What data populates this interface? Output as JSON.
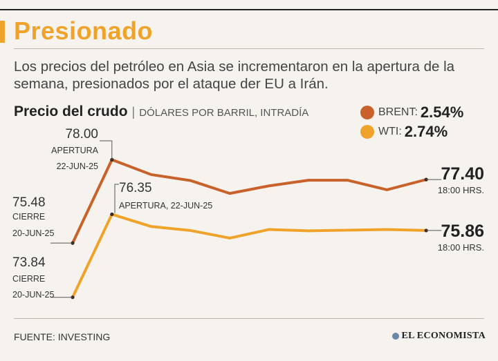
{
  "header": {
    "title": "Presionado",
    "subtitle": "Los precios del petróleo en Asia se incrementaron en la apertura de la semana, presionados por el ataque der EU a Irán."
  },
  "chart_title": {
    "main": "Precio del crudo",
    "separator": "|",
    "units": "DÓLARES POR BARRIL, INTRADÍA"
  },
  "legend": [
    {
      "name": "BRENT:",
      "change": "2.54%",
      "color": "#c9622a"
    },
    {
      "name": "WTI:",
      "change": "2.74%",
      "color": "#f0a32a"
    }
  ],
  "chart_data": {
    "type": "line",
    "ylim": [
      73.5,
      78.3
    ],
    "grid": false,
    "legend_position": "top-right",
    "series": [
      {
        "name": "BRENT",
        "color": "#c9622a",
        "values": [
          75.48,
          78.0,
          77.55,
          77.37,
          76.98,
          77.21,
          77.38,
          77.38,
          77.09,
          77.4
        ],
        "annotations": {
          "start": {
            "value": "75.48",
            "lines": [
              "CIERRE",
              "20-JUN-25"
            ]
          },
          "open": {
            "value": "78.00",
            "lines": [
              "APERTURA",
              "22-JUN-25"
            ]
          },
          "end": {
            "value": "77.40",
            "time": "18:00 HRS."
          }
        }
      },
      {
        "name": "WTI",
        "color": "#f0a32a",
        "values": [
          73.84,
          76.35,
          75.98,
          75.86,
          75.63,
          75.89,
          75.85,
          75.87,
          75.89,
          75.86
        ],
        "annotations": {
          "start": {
            "value": "73.84",
            "lines": [
              "CIERRE",
              "20-JUN-25"
            ]
          },
          "open": {
            "value": "76.35",
            "lines": [
              "APERTURA, 22-JUN-25"
            ]
          },
          "end": {
            "value": "75.86",
            "time": "18:00 HRS."
          }
        }
      }
    ]
  },
  "footer": {
    "source": "FUENTE: INVESTING",
    "brand": "EL ECONOMISTA"
  }
}
